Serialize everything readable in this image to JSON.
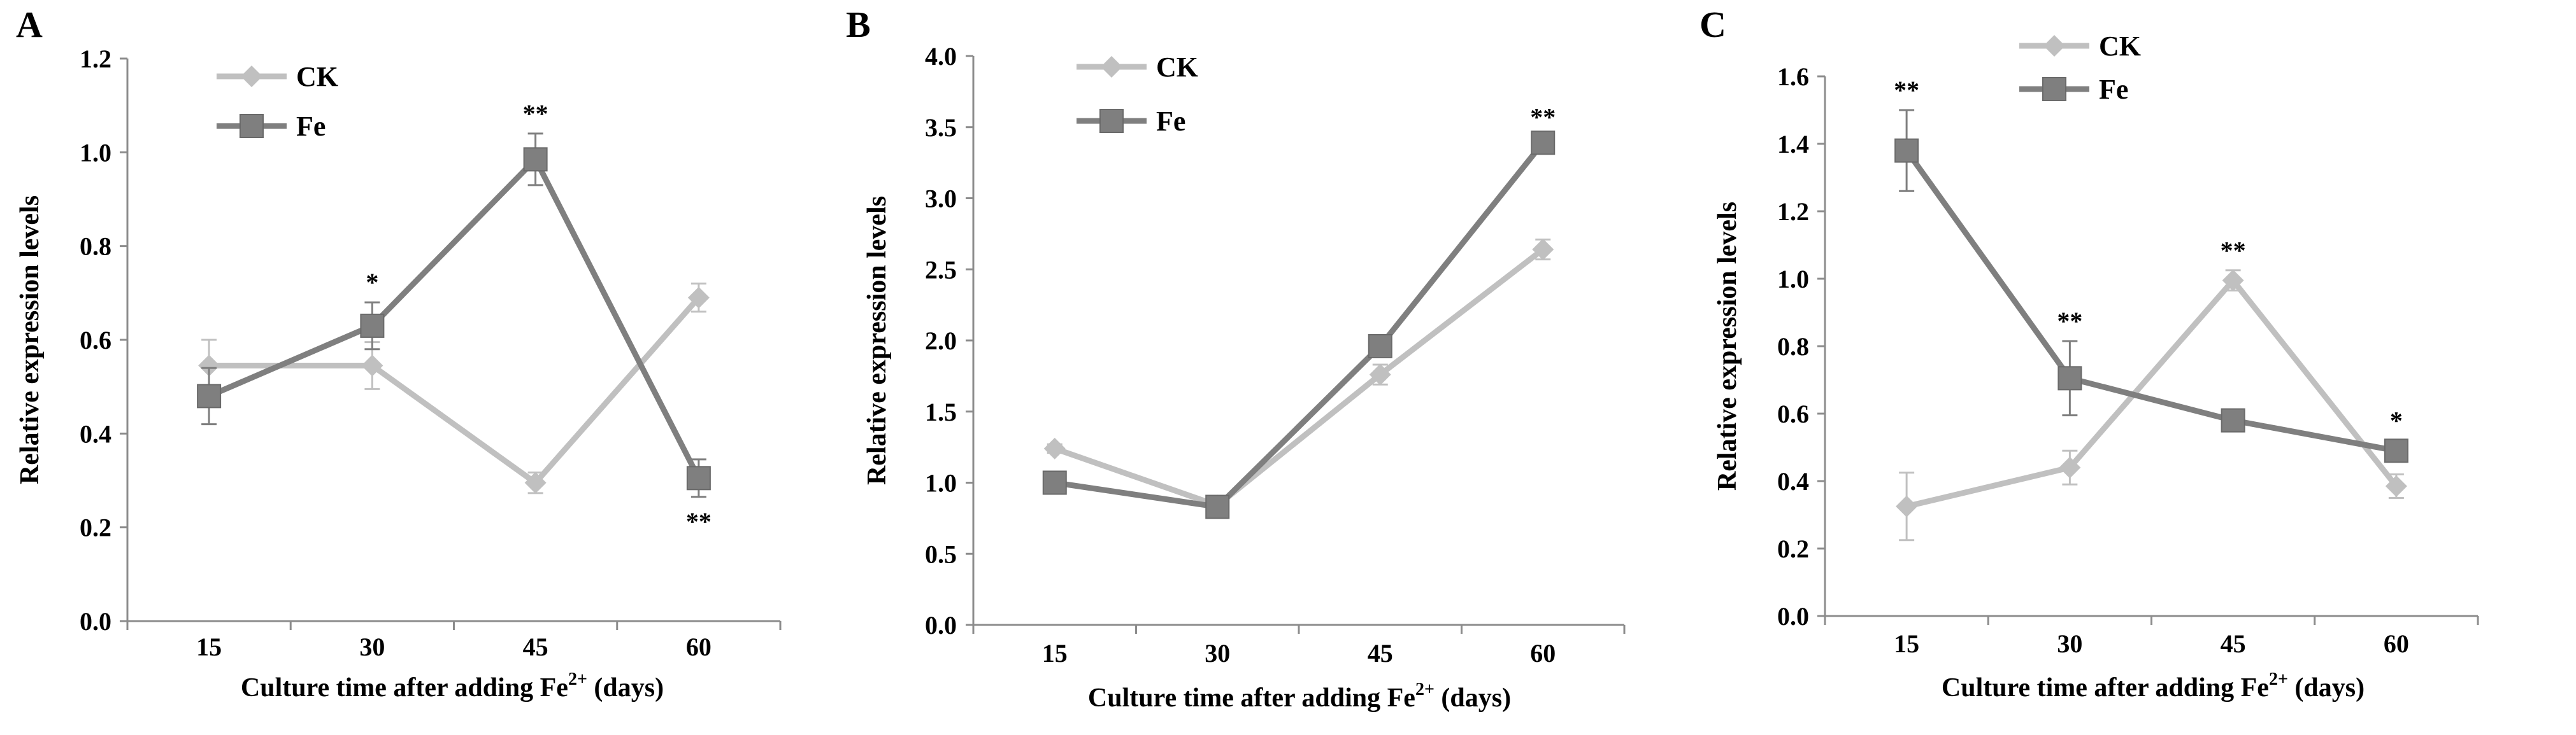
{
  "chart_data": [
    {
      "panel": "A",
      "type": "line",
      "categories": [
        "15",
        "30",
        "45",
        "60"
      ],
      "xlabel_prefix": "Culture  time after adding Fe",
      "xlabel_sup": "2+",
      "xlabel_suffix": " (days)",
      "ylabel": "Relative expression levels",
      "ylim": [
        0,
        1.2
      ],
      "yticks": [
        "0.0",
        "0.2",
        "0.4",
        "0.6",
        "0.8",
        "1.0",
        "1.2"
      ],
      "legend_position": "top-left",
      "series": [
        {
          "name": "CK",
          "marker": "diamond",
          "color": "#c0c0c0",
          "values": [
            0.545,
            0.545,
            0.295,
            0.69
          ],
          "errors": [
            0.055,
            0.05,
            0.022,
            0.03
          ]
        },
        {
          "name": "Fe",
          "marker": "square",
          "color": "#7f7f7f",
          "values": [
            0.48,
            0.63,
            0.985,
            0.305
          ],
          "errors": [
            0.06,
            0.05,
            0.055,
            0.04
          ]
        }
      ],
      "annotations": [
        {
          "category": "30",
          "text": "*",
          "side": "above"
        },
        {
          "category": "45",
          "text": "**",
          "side": "above"
        },
        {
          "category": "60",
          "text": "**",
          "side": "below"
        }
      ]
    },
    {
      "panel": "B",
      "type": "line",
      "categories": [
        "15",
        "30",
        "45",
        "60"
      ],
      "xlabel_prefix": "Culture  time after adding Fe",
      "xlabel_sup": "2+",
      "xlabel_suffix": " (days)",
      "ylabel": "Relative expression levels",
      "ylim": [
        0,
        4.0
      ],
      "yticks": [
        "0.0",
        "0.5",
        "1.0",
        "1.5",
        "2.0",
        "2.5",
        "3.0",
        "3.5",
        "4.0"
      ],
      "legend_position": "top-left",
      "series": [
        {
          "name": "CK",
          "marker": "diamond",
          "color": "#c0c0c0",
          "values": [
            1.24,
            0.84,
            1.76,
            2.64
          ],
          "errors": [
            0.03,
            0.04,
            0.07,
            0.07
          ]
        },
        {
          "name": "Fe",
          "marker": "square",
          "color": "#7f7f7f",
          "values": [
            1.0,
            0.83,
            1.96,
            3.39
          ],
          "errors": [
            0.03,
            0.07,
            0.07,
            0.04
          ]
        }
      ],
      "annotations": [
        {
          "category": "60",
          "text": "**",
          "side": "above"
        }
      ]
    },
    {
      "panel": "C",
      "type": "line",
      "categories": [
        "15",
        "30",
        "45",
        "60"
      ],
      "xlabel_prefix": "Culture  time after adding Fe",
      "xlabel_sup": "2+",
      "xlabel_suffix": " (days)",
      "ylabel": "Relative expression levels",
      "ylim": [
        0,
        1.6
      ],
      "yticks": [
        "0.0",
        "0.2",
        "0.4",
        "0.6",
        "0.8",
        "1.0",
        "1.2",
        "1.4",
        "1.6"
      ],
      "legend_position": "top",
      "series": [
        {
          "name": "CK",
          "marker": "diamond",
          "color": "#c0c0c0",
          "values": [
            0.325,
            0.44,
            0.995,
            0.385
          ],
          "errors": [
            0.1,
            0.05,
            0.03,
            0.035
          ]
        },
        {
          "name": "Fe",
          "marker": "square",
          "color": "#7f7f7f",
          "values": [
            1.38,
            0.705,
            0.58,
            0.49
          ],
          "errors": [
            0.12,
            0.11,
            0.03,
            0.03
          ]
        }
      ],
      "annotations": [
        {
          "category": "15",
          "text": "**",
          "side": "above"
        },
        {
          "category": "30",
          "text": "**",
          "side": "above"
        },
        {
          "category": "45",
          "text": "**",
          "side": "above"
        },
        {
          "category": "60",
          "text": "*",
          "side": "above"
        }
      ]
    }
  ]
}
